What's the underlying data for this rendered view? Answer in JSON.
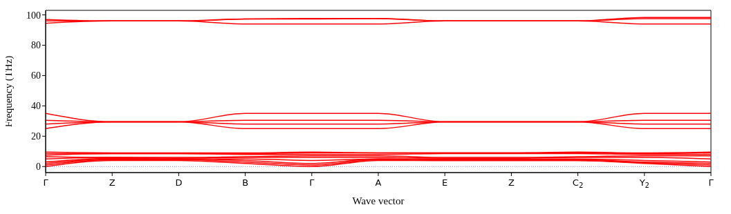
{
  "chart_data": {
    "type": "line",
    "xlabel": "Wave vector",
    "ylabel": "Frequency (THz)",
    "categories": [
      "Γ",
      "Z",
      "D",
      "B",
      "Γ",
      "A",
      "E",
      "Z",
      "C$_{2}$",
      "Y$_{2}$",
      "Γ"
    ],
    "ylim": [
      -4,
      103
    ],
    "yticks": [
      0,
      20,
      40,
      60,
      80,
      100
    ],
    "ref_lines": [
      {
        "axis": "y",
        "value": 0,
        "color": "#8080ff",
        "line_style": "dotted"
      }
    ],
    "series": [
      {
        "color": "#ff0000",
        "values": [
          97,
          96,
          96,
          97.3,
          97.7,
          97.7,
          96,
          96,
          96,
          98.3,
          98.3
        ]
      },
      {
        "color": "#ff0000",
        "values": [
          96,
          96,
          96,
          97.3,
          97.3,
          97.5,
          96,
          96,
          96,
          97.5,
          97.5
        ]
      },
      {
        "color": "#ff0000",
        "values": [
          94.5,
          96,
          96,
          94,
          94,
          94,
          96,
          96,
          96,
          94,
          94
        ]
      },
      {
        "color": "#ff0000",
        "values": [
          35,
          29.5,
          29.5,
          35,
          35,
          35,
          29.5,
          29.5,
          29.5,
          35,
          35
        ]
      },
      {
        "color": "#ff0000",
        "values": [
          30.5,
          29.5,
          29.5,
          30.5,
          30.5,
          30.5,
          29.5,
          29.5,
          29.5,
          30.5,
          30.5
        ]
      },
      {
        "color": "#ff0000",
        "values": [
          28,
          29.5,
          29.5,
          28,
          28,
          28,
          29.5,
          29.5,
          29.5,
          28,
          28
        ]
      },
      {
        "color": "#ff0000",
        "values": [
          25,
          29.5,
          29.5,
          25,
          25,
          25,
          29.5,
          29.5,
          29.5,
          25,
          25
        ]
      },
      {
        "color": "#ff0000",
        "values": [
          0,
          4,
          4,
          2,
          0,
          4,
          4,
          4,
          4,
          2,
          0
        ]
      },
      {
        "color": "#ff0000",
        "values": [
          1,
          4.5,
          4.5,
          3,
          1,
          4.5,
          4,
          4,
          4,
          2.5,
          1
        ]
      },
      {
        "color": "#ff0000",
        "values": [
          2,
          5,
          5,
          4,
          2,
          5,
          4.5,
          4.5,
          4.5,
          3,
          2
        ]
      },
      {
        "color": "#ff0000",
        "values": [
          3,
          5.5,
          5,
          5,
          4,
          5,
          5,
          5,
          5,
          4,
          3
        ]
      },
      {
        "color": "#ff0000",
        "values": [
          5,
          6,
          5.5,
          6,
          6,
          6,
          5.5,
          5.5,
          6,
          6,
          5
        ]
      },
      {
        "color": "#ff0000",
        "values": [
          6.5,
          6,
          6,
          6.5,
          7,
          7,
          6,
          6,
          6.5,
          7,
          7
        ]
      },
      {
        "color": "#ff0000",
        "values": [
          7.5,
          8.5,
          8.5,
          8,
          8,
          8,
          8.5,
          8.5,
          8.5,
          8,
          8
        ]
      },
      {
        "color": "#ff0000",
        "values": [
          8.5,
          8.5,
          8.5,
          8.5,
          9,
          9,
          9,
          9,
          9,
          8.5,
          9
        ]
      },
      {
        "color": "#ff0000",
        "values": [
          9.5,
          9,
          9,
          9,
          9.5,
          9,
          9,
          9,
          9.5,
          9,
          9.5
        ]
      }
    ]
  }
}
